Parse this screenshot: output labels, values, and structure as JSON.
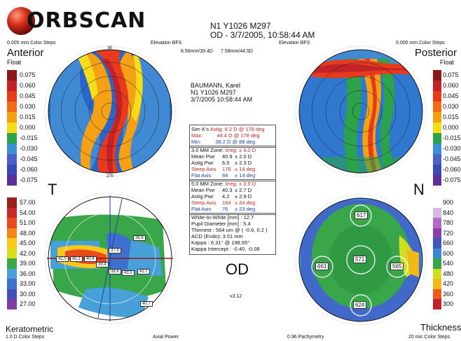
{
  "header": {
    "logo_text": "ORBSCAN",
    "patient_line1": "N1 Y1026 M297",
    "patient_line2": "OD - 3/7/2005, 10:58:44 AM"
  },
  "anterior": {
    "steps": "0.005 mm Color Steps",
    "elevation": "Elevation BFS",
    "bfs1": "8.56mm/39.4D",
    "bfs2": "7.58mm/44.5D",
    "title": "Anterior",
    "subtitle": "Float"
  },
  "posterior": {
    "elevation": "Elevation BFS",
    "steps": "0.005 mm Color Steps",
    "title": "Posterior",
    "subtitle": "Float"
  },
  "float_scale_left": [
    "0.075",
    "0.060",
    "0.045",
    "0.030",
    "0.015",
    "0.000",
    "-0.015",
    "-0.030",
    "-0.045",
    "-0.060",
    "-0.075"
  ],
  "float_scale_right": [
    "0.075",
    "0.060",
    "0.045",
    "0.030",
    "0.015",
    "0.000",
    "-0.015",
    "-0.030",
    "-0.045",
    "-0.060",
    "-0.075"
  ],
  "kerato_scale": [
    "57.00",
    "54.00",
    "51.00",
    "48.00",
    "45.00",
    "42.00",
    "39.00",
    "36.00",
    "33.00",
    "30.00",
    "27.00"
  ],
  "thick_scale": [
    "900",
    "840",
    "780",
    "720",
    "660",
    "600",
    "540",
    "480",
    "420",
    "360",
    "300"
  ],
  "colors": {
    "float": [
      "#8b1a1a",
      "#c2232a",
      "#e83b1c",
      "#f06a18",
      "#f5a116",
      "#f7dc1a",
      "#2ca34a",
      "#3e8fd4",
      "#4a62c8",
      "#3a4ab5",
      "#5c2f99"
    ],
    "kerato": [
      "#9a1f1f",
      "#c5292c",
      "#e84a1d",
      "#f3861b",
      "#f8c91a",
      "#d8e01d",
      "#3aa64a",
      "#48a0d8",
      "#3f70cf",
      "#4151b7",
      "#7e3ea6"
    ],
    "thick": [
      "#ffffff",
      "#d8b6e2",
      "#b06cc2",
      "#8a3fa8",
      "#4256c0",
      "#3d86d6",
      "#39a64a",
      "#cfe024",
      "#f4b718",
      "#ee5a1a",
      "#c11f29"
    ]
  },
  "patient": {
    "name": "BAUMANN, Karel",
    "id": "N1 Y1026 M297",
    "date": "3/7/2005 10:58:44 AM"
  },
  "simk": {
    "label": "Sim K's",
    "astig_label": "Astig:",
    "astig": "6.2 D",
    "astig_axis": "@ 178 deg",
    "max_label": "Max:",
    "max": "44.4 D",
    "max_axis": "@ 178 deg",
    "min_label": "Min:",
    "min": "38.2 D",
    "min_axis": "@ 88 deg"
  },
  "zone3": {
    "title": "3.0 MM Zone:",
    "irreg_label": "Irreg:",
    "irreg": "± 3.0 D",
    "mean_label": "Mean Pwr",
    "mean": "40.9",
    "mean_err": "± 2.0 D",
    "astig_label": "Astig Pwr",
    "astig": "6.5",
    "astig_err": "± 2.3 D",
    "steep_label": "Steep Axis",
    "steep": "176",
    "steep_err": "± 14 deg",
    "flat_label": "Flat Axis",
    "flat": "84",
    "flat_err": "± 14 deg"
  },
  "zone5": {
    "title": "5.0 MM Zone:",
    "irreg_label": "Irreg:",
    "irreg": "± 3.9 D",
    "mean_label": "Mean Pwr",
    "mean": "40.3",
    "mean_err": "± 2.7 D",
    "astig_label": "Astig Pwr",
    "astig": "4.2",
    "astig_err": "± 2.9 D",
    "steep_label": "Steep Axis",
    "steep": "164",
    "steep_err": "± 24 deg",
    "flat_label": "Flat Axis",
    "flat": "76",
    "flat_err": "± 23 deg"
  },
  "misc": {
    "wtw": "White-to-White [mm] : 12.7",
    "pupil": "Pupil Diameter [mm] : 5.4",
    "thinnest": "Thinnest : 564 um @ ( -0.6, 0.2 )",
    "acd": "ACD (Endo): 3.51 mm",
    "kappa": "Kappa : 6.31° @ 198.95°",
    "kappa_int": "Kappa Intercept : -0.40, -0.08"
  },
  "eye": "OD",
  "version": "v3.12",
  "letters": {
    "t": "T",
    "n": "N"
  },
  "kerato_map": {
    "title": "Keratometric",
    "steps": "1.0 D Color Steps",
    "mode": "Axial Power",
    "values": [
      "42.0",
      "45.1",
      "40.4",
      "37.9",
      "38.8",
      "43.5",
      "41.7",
      "39.4",
      "40.7",
      "36.8"
    ]
  },
  "thick_map": {
    "title": "Thickness",
    "pachy": "0.96 Pachymetry",
    "steps": "20 mic Color Steps",
    "values": [
      "617",
      "661",
      "571",
      "565",
      "624"
    ]
  },
  "ticks": {
    "a": "90",
    "b": "270",
    "c": "180",
    "d": "0",
    "e": "135",
    "f": "225",
    "g": "315",
    "h": "45"
  }
}
